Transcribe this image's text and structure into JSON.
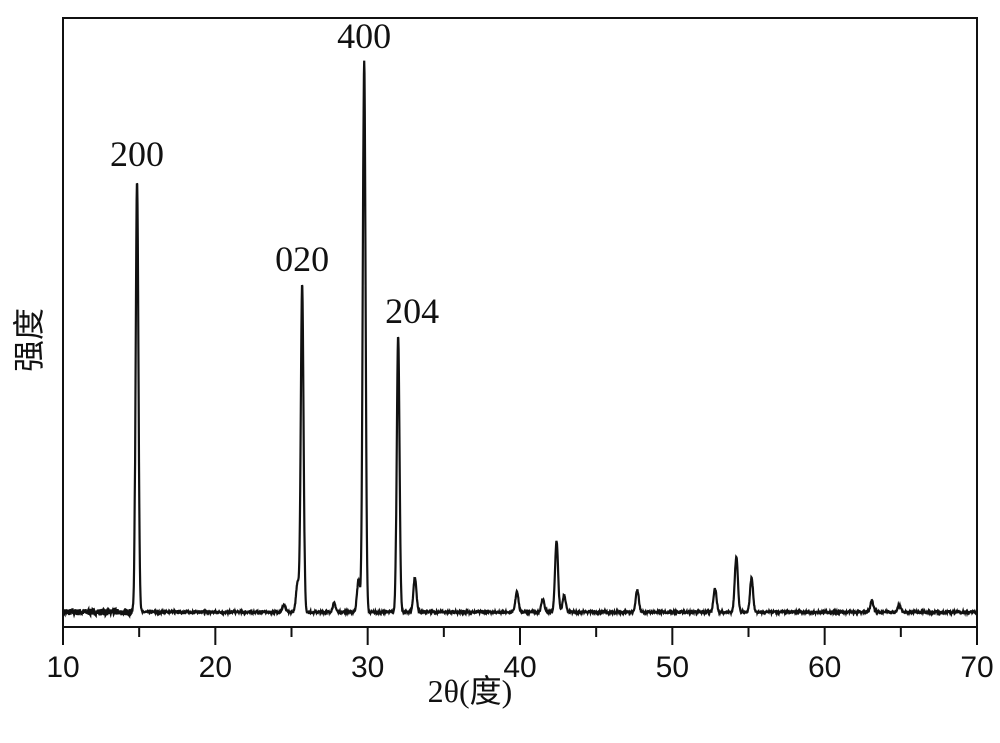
{
  "chart_data": {
    "type": "line",
    "title": "",
    "xlabel": "2θ(度)",
    "ylabel": "强度",
    "xlim": [
      10,
      70
    ],
    "ylim": [
      -2.4,
      108
    ],
    "x_ticks": [
      10,
      20,
      30,
      40,
      50,
      60,
      70
    ],
    "x_minor_step": 5,
    "y_ticks": [],
    "grid": false,
    "line_color": "#111111",
    "peaks": [
      {
        "x": 14.86,
        "y": 78.6,
        "label": "200"
      },
      {
        "x": 24.5,
        "y": 1.3
      },
      {
        "x": 25.4,
        "y": 5.4
      },
      {
        "x": 25.7,
        "y": 59.6,
        "label": "020"
      },
      {
        "x": 27.8,
        "y": 1.6
      },
      {
        "x": 29.4,
        "y": 5.8
      },
      {
        "x": 29.77,
        "y": 100,
        "label": "400"
      },
      {
        "x": 32.0,
        "y": 50.2,
        "label": "204"
      },
      {
        "x": 33.1,
        "y": 6.2
      },
      {
        "x": 39.8,
        "y": 3.8
      },
      {
        "x": 41.5,
        "y": 2.4
      },
      {
        "x": 42.4,
        "y": 12.9
      },
      {
        "x": 42.9,
        "y": 3.1
      },
      {
        "x": 47.7,
        "y": 4.0
      },
      {
        "x": 52.8,
        "y": 4.3
      },
      {
        "x": 54.2,
        "y": 10.1
      },
      {
        "x": 55.2,
        "y": 6.2
      },
      {
        "x": 63.1,
        "y": 2.0
      },
      {
        "x": 64.9,
        "y": 1.3
      }
    ]
  }
}
